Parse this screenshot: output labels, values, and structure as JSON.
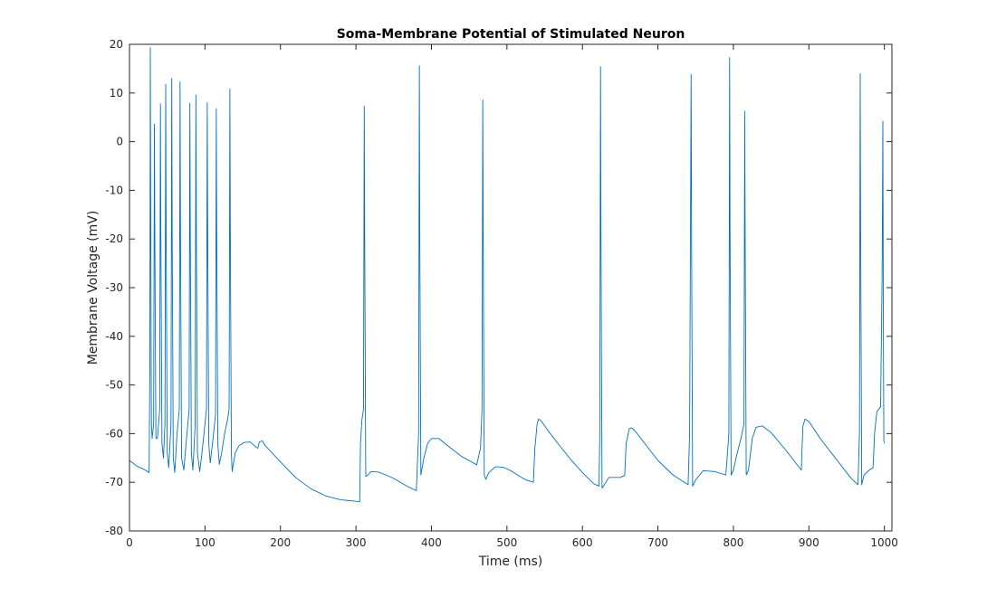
{
  "chart_data": {
    "type": "line",
    "title": "Soma-Membrane Potential of Stimulated Neuron",
    "xlabel": "Time (ms)",
    "ylabel": "Membrane Voltage (mV)",
    "xlim": [
      0,
      1010
    ],
    "ylim": [
      -80,
      20
    ],
    "xticks": [
      0,
      100,
      200,
      300,
      400,
      500,
      600,
      700,
      800,
      900,
      1000
    ],
    "yticks": [
      -80,
      -70,
      -60,
      -50,
      -40,
      -30,
      -20,
      -10,
      0,
      10,
      20
    ],
    "grid": false,
    "box": true,
    "series": [
      {
        "color": "#0072bd",
        "points": [
          [
            0,
            -65.5
          ],
          [
            10,
            -66.7
          ],
          [
            20,
            -67.4
          ],
          [
            26,
            -68.0
          ],
          [
            27,
            -45
          ],
          [
            27.6,
            19.3
          ],
          [
            28.2,
            -16
          ],
          [
            29,
            -58
          ],
          [
            30,
            -61
          ],
          [
            32,
            -58
          ],
          [
            33,
            3.6
          ],
          [
            33.6,
            -20
          ],
          [
            35,
            -61
          ],
          [
            37,
            -61
          ],
          [
            40,
            -55
          ],
          [
            41,
            7.8
          ],
          [
            41.6,
            -20
          ],
          [
            43,
            -62
          ],
          [
            45,
            -65
          ],
          [
            47,
            -58
          ],
          [
            48,
            11.8
          ],
          [
            48.6,
            -20
          ],
          [
            50,
            -64
          ],
          [
            52,
            -67
          ],
          [
            55,
            -58
          ],
          [
            56,
            13.0
          ],
          [
            56.6,
            -20
          ],
          [
            58,
            -65
          ],
          [
            60,
            -68
          ],
          [
            63,
            -60
          ],
          [
            66,
            -55
          ],
          [
            67,
            12.3
          ],
          [
            67.6,
            -20
          ],
          [
            69,
            -65
          ],
          [
            72,
            -67.5
          ],
          [
            75,
            -62
          ],
          [
            79,
            -55
          ],
          [
            80,
            7.9
          ],
          [
            80.6,
            -20
          ],
          [
            82,
            -64
          ],
          [
            84,
            -67.5
          ],
          [
            87,
            -58
          ],
          [
            88,
            9.6
          ],
          [
            88.6,
            -20
          ],
          [
            90,
            -64
          ],
          [
            93,
            -67.8
          ],
          [
            96,
            -64
          ],
          [
            100,
            -58
          ],
          [
            102,
            -55
          ],
          [
            103,
            8.0
          ],
          [
            103.6,
            -18
          ],
          [
            105,
            -62
          ],
          [
            107,
            -66
          ],
          [
            110,
            -62
          ],
          [
            114,
            -56
          ],
          [
            115,
            6.8
          ],
          [
            115.6,
            -20
          ],
          [
            117,
            -62
          ],
          [
            119,
            -66.3
          ],
          [
            122,
            -64
          ],
          [
            126,
            -60
          ],
          [
            130,
            -57
          ],
          [
            132,
            -55
          ],
          [
            133,
            10.8
          ],
          [
            133.6,
            -20
          ],
          [
            135,
            -64
          ],
          [
            136,
            -67.8
          ],
          [
            140,
            -64
          ],
          [
            145,
            -62.5
          ],
          [
            152,
            -61.8
          ],
          [
            160,
            -61.7
          ],
          [
            168,
            -62.8
          ],
          [
            170,
            -63.0
          ],
          [
            172,
            -61.7
          ],
          [
            176,
            -61.5
          ],
          [
            180,
            -62.5
          ],
          [
            200,
            -65.8
          ],
          [
            220,
            -69.0
          ],
          [
            240,
            -71.3
          ],
          [
            260,
            -72.8
          ],
          [
            280,
            -73.6
          ],
          [
            300,
            -73.9
          ],
          [
            305,
            -74.0
          ],
          [
            306,
            -62
          ],
          [
            308,
            -57
          ],
          [
            310,
            -55
          ],
          [
            311,
            7.3
          ],
          [
            311.6,
            -20
          ],
          [
            313,
            -68.8
          ],
          [
            316,
            -68.5
          ],
          [
            320,
            -67.8
          ],
          [
            330,
            -67.9
          ],
          [
            340,
            -68.5
          ],
          [
            350,
            -69.2
          ],
          [
            360,
            -70.1
          ],
          [
            370,
            -71.0
          ],
          [
            380,
            -71.7
          ],
          [
            383,
            -60
          ],
          [
            384,
            15.6
          ],
          [
            384.6,
            -20
          ],
          [
            386,
            -68.5
          ],
          [
            390,
            -65
          ],
          [
            395,
            -62
          ],
          [
            400,
            -61.0
          ],
          [
            410,
            -61.0
          ],
          [
            420,
            -62.3
          ],
          [
            440,
            -64.7
          ],
          [
            460,
            -66.4
          ],
          [
            465,
            -63
          ],
          [
            467,
            -55
          ],
          [
            468,
            8.6
          ],
          [
            468.6,
            -20
          ],
          [
            470,
            -68.5
          ],
          [
            472,
            -69.4
          ],
          [
            476,
            -68.0
          ],
          [
            485,
            -66.8
          ],
          [
            495,
            -66.9
          ],
          [
            505,
            -67.6
          ],
          [
            515,
            -68.6
          ],
          [
            525,
            -69.5
          ],
          [
            535,
            -70.0
          ],
          [
            537,
            -63
          ],
          [
            540,
            -58.0
          ],
          [
            542,
            -57.0
          ],
          [
            545,
            -57.3
          ],
          [
            555,
            -59.5
          ],
          [
            570,
            -62.5
          ],
          [
            585,
            -65.4
          ],
          [
            600,
            -68.0
          ],
          [
            615,
            -70.3
          ],
          [
            622,
            -70.8
          ],
          [
            623,
            -60
          ],
          [
            624,
            15.4
          ],
          [
            624.6,
            -20
          ],
          [
            626,
            -71.2
          ],
          [
            629,
            -70.5
          ],
          [
            635,
            -69.0
          ],
          [
            650,
            -69.0
          ],
          [
            656,
            -68.6
          ],
          [
            658,
            -62
          ],
          [
            662,
            -59.0
          ],
          [
            665,
            -58.8
          ],
          [
            670,
            -59.5
          ],
          [
            685,
            -62.5
          ],
          [
            700,
            -65.5
          ],
          [
            720,
            -68.5
          ],
          [
            740,
            -70.5
          ],
          [
            742,
            -60
          ],
          [
            744,
            13.8
          ],
          [
            744.6,
            -20
          ],
          [
            746,
            -70.8
          ],
          [
            750,
            -69.5
          ],
          [
            760,
            -67.6
          ],
          [
            775,
            -67.8
          ],
          [
            790,
            -68.5
          ],
          [
            794,
            -60
          ],
          [
            795,
            17.3
          ],
          [
            795.6,
            -20
          ],
          [
            797,
            -68.5
          ],
          [
            800,
            -67.5
          ],
          [
            805,
            -64
          ],
          [
            810,
            -61
          ],
          [
            814,
            -58
          ],
          [
            815,
            6.2
          ],
          [
            815.6,
            -20
          ],
          [
            817,
            -68.5
          ],
          [
            820,
            -67.5
          ],
          [
            825,
            -61
          ],
          [
            830,
            -58.7
          ],
          [
            838,
            -58.4
          ],
          [
            850,
            -59.8
          ],
          [
            870,
            -63.5
          ],
          [
            885,
            -66.5
          ],
          [
            890,
            -67.5
          ],
          [
            892,
            -58.5
          ],
          [
            895,
            -57.0
          ],
          [
            900,
            -57.5
          ],
          [
            915,
            -61.0
          ],
          [
            935,
            -65.0
          ],
          [
            955,
            -69.0
          ],
          [
            965,
            -70.5
          ],
          [
            967,
            -60
          ],
          [
            968,
            14.0
          ],
          [
            968.6,
            -20
          ],
          [
            970,
            -70.5
          ],
          [
            973,
            -68.5
          ],
          [
            980,
            -67.5
          ],
          [
            985,
            -67.0
          ],
          [
            987,
            -60
          ],
          [
            990,
            -55.5
          ],
          [
            995,
            -54.5
          ],
          [
            997,
            -28
          ],
          [
            998,
            4.2
          ],
          [
            998.6,
            -35
          ],
          [
            999.3,
            -61.5
          ],
          [
            1000,
            -62.0
          ]
        ]
      }
    ]
  }
}
